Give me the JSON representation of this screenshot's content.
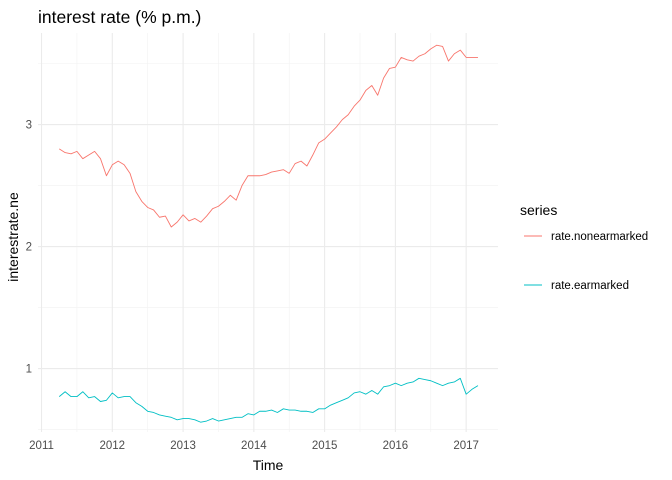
{
  "chart_data": {
    "type": "line",
    "title": "interest rate (% p.m.)",
    "xlabel": "Time",
    "ylabel": "interestrate.ne",
    "xlim": [
      2010.95,
      2017.45
    ],
    "ylim": [
      0.48,
      3.75
    ],
    "x_ticks": [
      2011,
      2012,
      2013,
      2014,
      2015,
      2016,
      2017
    ],
    "x_tick_labels": [
      "2011",
      "2012",
      "2013",
      "2014",
      "2015",
      "2016",
      "2017"
    ],
    "y_ticks": [
      1,
      2,
      3
    ],
    "y_tick_labels": [
      "1",
      "2",
      "3"
    ],
    "grid": true,
    "legend": {
      "title": "series",
      "position": "right"
    },
    "series": [
      {
        "name": "rate.nonearmarked",
        "color": "#F8766D",
        "x": [
          2011.25,
          2011.333,
          2011.417,
          2011.5,
          2011.583,
          2011.667,
          2011.75,
          2011.833,
          2011.917,
          2012.0,
          2012.083,
          2012.167,
          2012.25,
          2012.333,
          2012.417,
          2012.5,
          2012.583,
          2012.667,
          2012.75,
          2012.833,
          2012.917,
          2013.0,
          2013.083,
          2013.167,
          2013.25,
          2013.333,
          2013.417,
          2013.5,
          2013.583,
          2013.667,
          2013.75,
          2013.833,
          2013.917,
          2014.0,
          2014.083,
          2014.167,
          2014.25,
          2014.333,
          2014.417,
          2014.5,
          2014.583,
          2014.667,
          2014.75,
          2014.833,
          2014.917,
          2015.0,
          2015.083,
          2015.167,
          2015.25,
          2015.333,
          2015.417,
          2015.5,
          2015.583,
          2015.667,
          2015.75,
          2015.833,
          2015.917,
          2016.0,
          2016.083,
          2016.167,
          2016.25,
          2016.333,
          2016.417,
          2016.5,
          2016.583,
          2016.667,
          2016.75,
          2016.833,
          2016.917,
          2017.0,
          2017.083,
          2017.167
        ],
        "y": [
          2.8,
          2.77,
          2.76,
          2.78,
          2.72,
          2.75,
          2.78,
          2.72,
          2.58,
          2.67,
          2.7,
          2.67,
          2.6,
          2.45,
          2.37,
          2.32,
          2.3,
          2.24,
          2.25,
          2.16,
          2.2,
          2.26,
          2.21,
          2.23,
          2.2,
          2.25,
          2.31,
          2.33,
          2.37,
          2.42,
          2.38,
          2.5,
          2.58,
          2.58,
          2.58,
          2.59,
          2.61,
          2.62,
          2.63,
          2.6,
          2.68,
          2.7,
          2.66,
          2.75,
          2.85,
          2.88,
          2.93,
          2.98,
          3.04,
          3.08,
          3.15,
          3.2,
          3.28,
          3.32,
          3.24,
          3.38,
          3.46,
          3.47,
          3.55,
          3.53,
          3.52,
          3.56,
          3.58,
          3.62,
          3.65,
          3.64,
          3.52,
          3.58,
          3.61,
          3.55,
          3.55,
          3.55
        ]
      },
      {
        "name": "rate.earmarked",
        "color": "#00BFC4",
        "x": [
          2011.25,
          2011.333,
          2011.417,
          2011.5,
          2011.583,
          2011.667,
          2011.75,
          2011.833,
          2011.917,
          2012.0,
          2012.083,
          2012.167,
          2012.25,
          2012.333,
          2012.417,
          2012.5,
          2012.583,
          2012.667,
          2012.75,
          2012.833,
          2012.917,
          2013.0,
          2013.083,
          2013.167,
          2013.25,
          2013.333,
          2013.417,
          2013.5,
          2013.583,
          2013.667,
          2013.75,
          2013.833,
          2013.917,
          2014.0,
          2014.083,
          2014.167,
          2014.25,
          2014.333,
          2014.417,
          2014.5,
          2014.583,
          2014.667,
          2014.75,
          2014.833,
          2014.917,
          2015.0,
          2015.083,
          2015.167,
          2015.25,
          2015.333,
          2015.417,
          2015.5,
          2015.583,
          2015.667,
          2015.75,
          2015.833,
          2015.917,
          2016.0,
          2016.083,
          2016.167,
          2016.25,
          2016.333,
          2016.417,
          2016.5,
          2016.583,
          2016.667,
          2016.75,
          2016.833,
          2016.917,
          2017.0,
          2017.083,
          2017.167
        ],
        "y": [
          0.77,
          0.81,
          0.77,
          0.77,
          0.81,
          0.76,
          0.77,
          0.73,
          0.74,
          0.8,
          0.76,
          0.77,
          0.77,
          0.72,
          0.69,
          0.65,
          0.64,
          0.62,
          0.61,
          0.6,
          0.58,
          0.59,
          0.59,
          0.58,
          0.56,
          0.57,
          0.59,
          0.57,
          0.58,
          0.59,
          0.6,
          0.6,
          0.63,
          0.62,
          0.65,
          0.65,
          0.66,
          0.64,
          0.67,
          0.66,
          0.66,
          0.65,
          0.65,
          0.64,
          0.67,
          0.67,
          0.7,
          0.72,
          0.74,
          0.76,
          0.8,
          0.81,
          0.79,
          0.82,
          0.79,
          0.85,
          0.86,
          0.88,
          0.86,
          0.88,
          0.89,
          0.92,
          0.91,
          0.9,
          0.88,
          0.86,
          0.88,
          0.89,
          0.92,
          0.79,
          0.83,
          0.86
        ]
      }
    ]
  }
}
